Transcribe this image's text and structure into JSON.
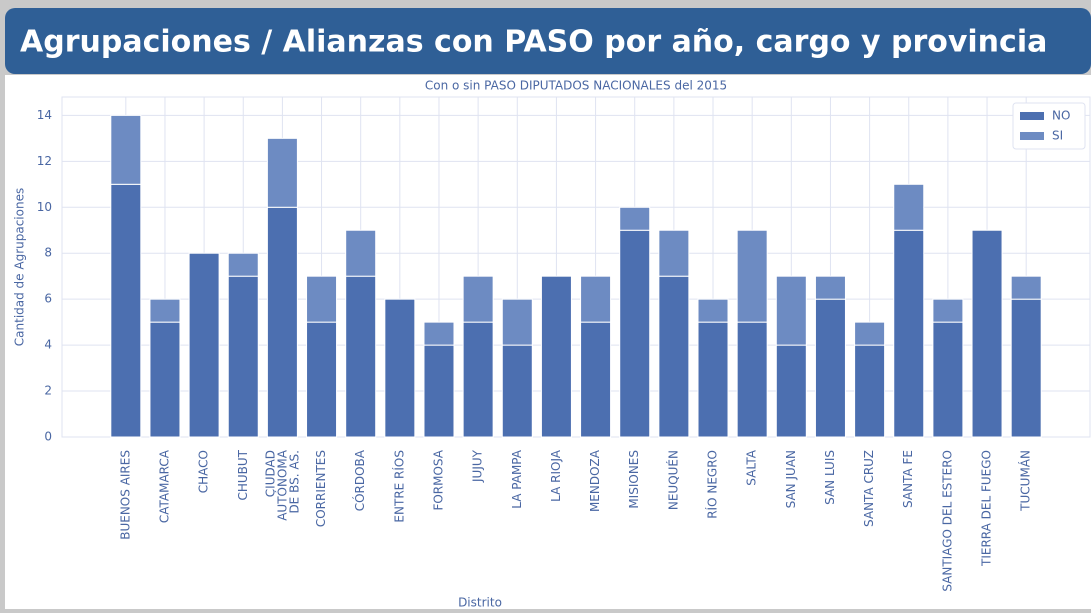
{
  "header": {
    "title": "Agrupaciones / Alianzas con PASO por año, cargo y provincia"
  },
  "chart_data": {
    "type": "stacked_bar",
    "title": "Con o sin PASO DIPUTADOS NACIONALES del 2015",
    "x_label": "Distrito",
    "y_label": "Cantidad de Agrupaciones",
    "categories": [
      "BUENOS AIRES",
      "CATAMARCA",
      "CHACO",
      "CHUBUT",
      "CIUDAD\nAUTÓNOMA\nDE BS. AS.",
      "CORRIENTES",
      "CÓRDOBA",
      "ENTRE RÍOS",
      "FORMOSA",
      "JUJUY",
      "LA PAMPA",
      "LA RIOJA",
      "MENDOZA",
      "MISIONES",
      "NEUQUÉN",
      "RÍO NEGRO",
      "SALTA",
      "SAN JUAN",
      "SAN LUIS",
      "SANTA CRUZ",
      "SANTA FE",
      "SANTIAGO DEL ESTERO",
      "TIERRA DEL FUEGO",
      "TUCUMÁN"
    ],
    "series": [
      {
        "name": "NO",
        "color": "#4c6fb0",
        "values": [
          11,
          5,
          8,
          7,
          10,
          5,
          7,
          6,
          4,
          5,
          4,
          7,
          5,
          9,
          7,
          5,
          5,
          4,
          6,
          4,
          9,
          5,
          9,
          6
        ]
      },
      {
        "name": "SI",
        "color": "#6d8bc2",
        "values": [
          3,
          1,
          0,
          1,
          3,
          2,
          2,
          0,
          1,
          2,
          2,
          0,
          2,
          1,
          2,
          1,
          4,
          3,
          1,
          1,
          2,
          1,
          0,
          1
        ]
      }
    ],
    "ylim": [
      0,
      14.8
    ],
    "yticks": [
      0,
      2,
      4,
      6,
      8,
      10,
      12,
      14
    ],
    "grid": true,
    "legend": "upper right"
  }
}
